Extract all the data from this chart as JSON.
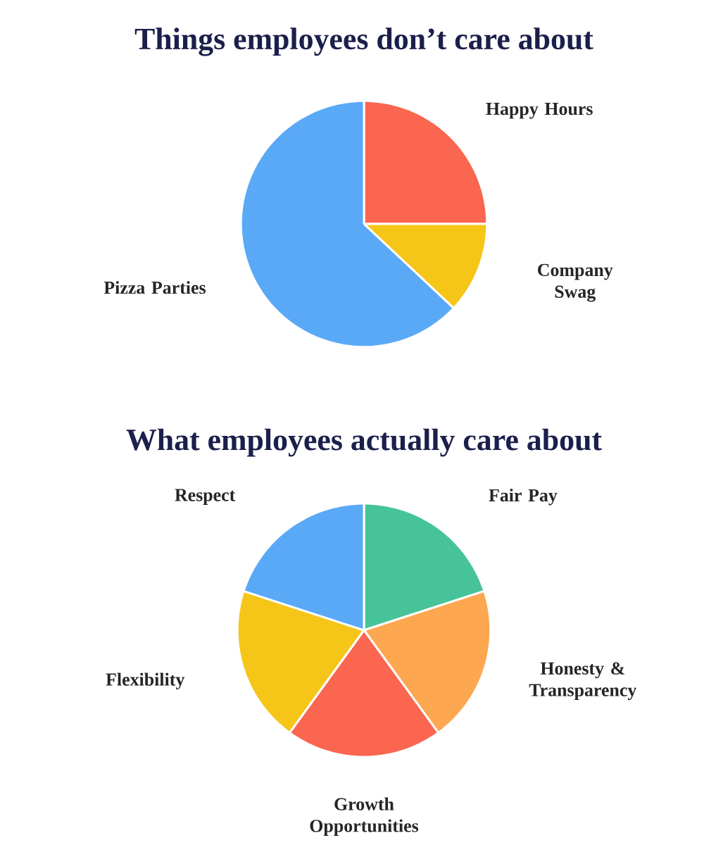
{
  "chart_data": [
    {
      "type": "pie",
      "title": "Things employees don’t care about",
      "categories": [
        "Happy Hours",
        "Company Swag",
        "Pizza Parties"
      ],
      "values": [
        25,
        12,
        63
      ],
      "colors": [
        "#fa6650",
        "#f5c518",
        "#5aa9f7"
      ]
    },
    {
      "type": "pie",
      "title": "What employees actually care about",
      "categories": [
        "Fair Pay",
        "Honesty & Transparency",
        "Growth Opportunities",
        "Flexibility",
        "Respect"
      ],
      "values": [
        20,
        20,
        20,
        20,
        20
      ],
      "colors": [
        "#47c39a",
        "#fda750",
        "#fa6650",
        "#f5c518",
        "#5aa9f7"
      ]
    }
  ]
}
